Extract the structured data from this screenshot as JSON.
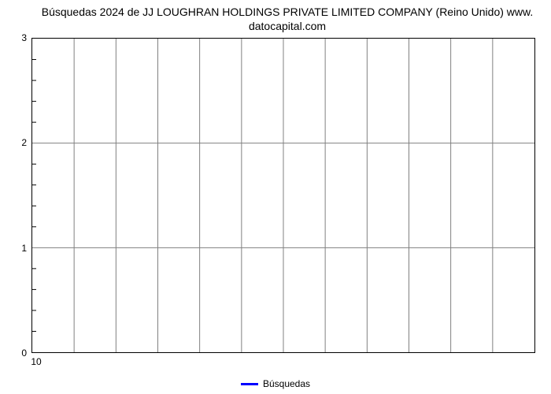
{
  "chart": {
    "type": "line",
    "title_line1": "Búsquedas 2024 de JJ LOUGHRAN HOLDINGS PRIVATE LIMITED COMPANY (Reino Unido) www.",
    "title_line2": "datocapital.com",
    "title_fontsize": 14,
    "title_color": "#000000",
    "ylim": [
      0,
      3
    ],
    "ytick_major": [
      0,
      1,
      2,
      3
    ],
    "ytick_minor_count_between": 4,
    "xtick_labels": [
      "10"
    ],
    "x_grid_positions": [
      0.0833,
      0.1667,
      0.25,
      0.3333,
      0.4167,
      0.5,
      0.5833,
      0.6667,
      0.75,
      0.8333,
      0.9167
    ],
    "background_color": "#ffffff",
    "border_color": "#000000",
    "grid_color": "#808080",
    "grid_width": 1,
    "tick_label_fontsize": 12,
    "legend": {
      "label": "Búsquedas",
      "color": "#0000ff",
      "line_width": 3,
      "fontsize": 12
    },
    "series": {
      "name": "Búsquedas",
      "color": "#0000ff",
      "values": []
    }
  }
}
